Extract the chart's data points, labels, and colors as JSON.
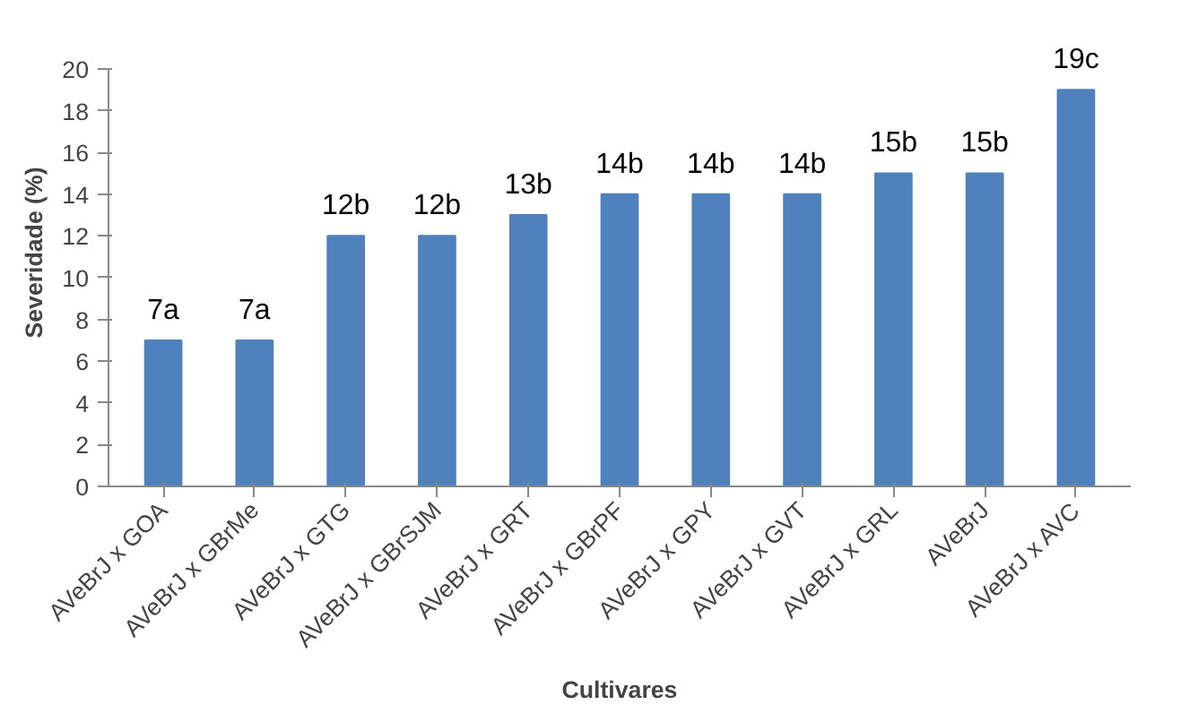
{
  "chart_data": {
    "type": "bar",
    "xlabel": "Cultivares",
    "ylabel": "Severidade (%)",
    "categories": [
      "AVeBrJ x GOA",
      "AVeBrJ x GBrMe",
      "AVeBrJ x GTG",
      "AVeBrJ x GBrSJM",
      "AVeBrJ x GRT",
      "AVeBrJ x GBrPF",
      "AVeBrJ x GPY",
      "AVeBrJ x GVT",
      "AVeBrJ x GRL",
      "AVeBrJ",
      "AVeBrJ x AVC"
    ],
    "values": [
      7,
      7,
      12,
      12,
      13,
      14,
      14,
      14,
      15,
      15,
      19
    ],
    "value_labels": [
      "7a",
      "7a",
      "12b",
      "12b",
      "13b",
      "14b",
      "14b",
      "14b",
      "15b",
      "15b",
      "19c"
    ],
    "color": "#4f81bd",
    "ylim": [
      0,
      20
    ],
    "yticks": [
      0,
      2,
      4,
      6,
      8,
      10,
      12,
      14,
      16,
      18,
      20
    ],
    "grid": false
  }
}
